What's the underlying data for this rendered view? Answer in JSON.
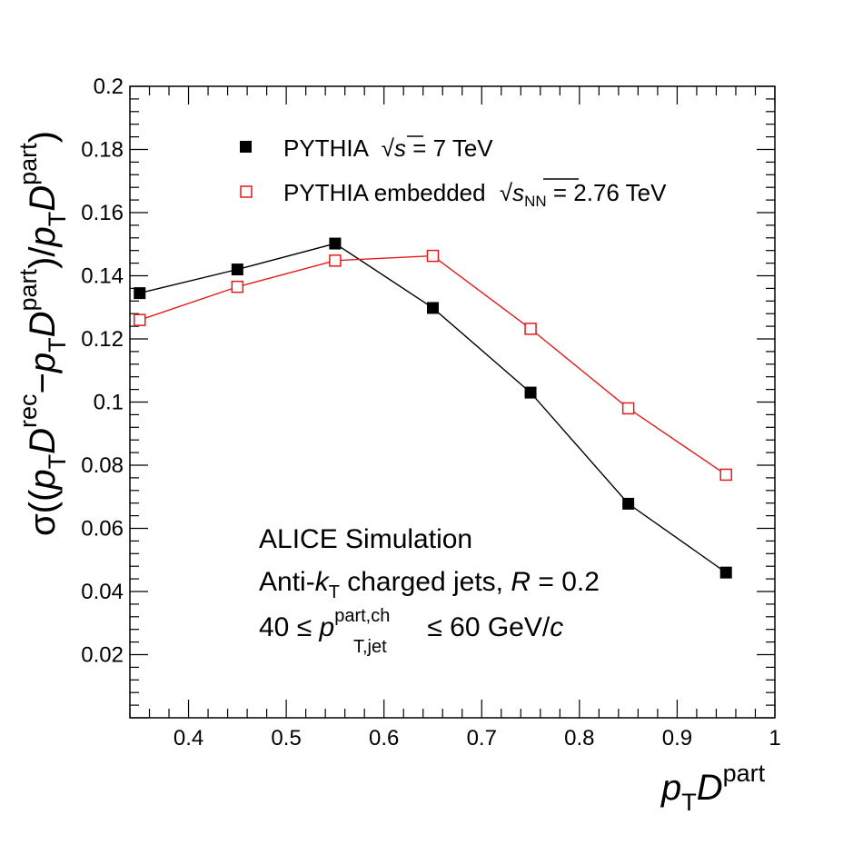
{
  "chart_data": {
    "type": "line",
    "x": [
      0.35,
      0.45,
      0.55,
      0.65,
      0.75,
      0.85,
      0.95
    ],
    "xlim": [
      0.34,
      1.0
    ],
    "ylim": [
      0.0,
      0.2
    ],
    "xticks": [
      "0.4",
      "0.5",
      "0.6",
      "0.7",
      "0.8",
      "0.9",
      "1"
    ],
    "xtick_values": [
      0.4,
      0.5,
      0.6,
      0.7,
      0.8,
      0.9,
      1.0
    ],
    "yticks": [
      "0.02",
      "0.04",
      "0.06",
      "0.08",
      "0.1",
      "0.12",
      "0.14",
      "0.16",
      "0.18",
      "0.2"
    ],
    "ytick_values": [
      0.02,
      0.04,
      0.06,
      0.08,
      0.1,
      0.12,
      0.14,
      0.16,
      0.18,
      0.2
    ],
    "xlabel": {
      "p": "p",
      "sub": "T",
      "D": "D",
      "sup": "part"
    },
    "ylabel": {
      "sigma": "σ((",
      "p1": "p",
      "sub1": "T",
      "D1": "D",
      "sup1": "rec",
      "minus": "−",
      "p2": "p",
      "sub2": "T",
      "D2": "D",
      "sup2": "part",
      "mid": ")/",
      "p3": "p",
      "sub3": "T",
      "D3": "D",
      "sup3": "part",
      "close": ")"
    },
    "series": [
      {
        "name": "PYTHIA √s = 7 TeV",
        "color": "#000000",
        "marker": "filled-square",
        "values": [
          0.1345,
          0.142,
          0.1502,
          0.1298,
          0.103,
          0.0678,
          0.046
        ]
      },
      {
        "name": "PYTHIA embedded √sNN = 2.76 TeV",
        "color": "#e41a1c",
        "marker": "open-square",
        "values": [
          0.126,
          0.1365,
          0.1448,
          0.1463,
          0.1232,
          0.098,
          0.077
        ]
      }
    ],
    "legend": {
      "entry1": {
        "prefix": "PYTHIA",
        "root": "s",
        "suffix": " = 7 TeV"
      },
      "entry2": {
        "prefix": "PYTHIA embedded",
        "root": "s",
        "rootsub": "NN",
        "suffix": " = 2.76 TeV"
      },
      "placement": "top-left"
    },
    "annotations": {
      "line1": "ALICE Simulation",
      "line2": {
        "a": "Anti-",
        "k": "k",
        "ksub": "T",
        "b": " charged jets, ",
        "R": "R",
        "c": " = 0.2"
      },
      "line3": {
        "a": "40 ≤ ",
        "p": "p",
        "sup": "part,ch",
        "sub": "T,jet",
        "b": " ≤ 60 GeV/",
        "c": "c"
      }
    }
  }
}
